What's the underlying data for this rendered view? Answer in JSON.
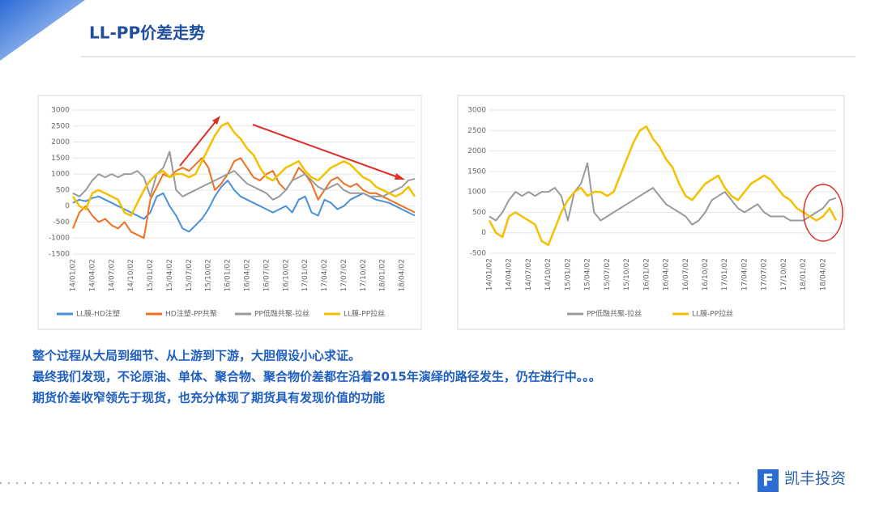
{
  "header": {
    "title": "LL-PP价差走势"
  },
  "body": {
    "lines": [
      "整个过程从大局到细节、从上游到下游，大胆假设小心求证。",
      "最终我们发现，不论原油、单体、聚合物、聚合物价差都在沿着2015年演绎的路径发生，仍在进行中。。。",
      "期货价差收窄领先于现货，也充分体现了期货具有发现价值的功能"
    ]
  },
  "logo": {
    "name": "凯丰投资"
  },
  "chart_data": [
    {
      "type": "line",
      "categories": [
        "14/01/02",
        null,
        null,
        "14/04/02",
        null,
        null,
        "14/07/02",
        null,
        null,
        "14/10/02",
        null,
        null,
        "15/01/02",
        null,
        null,
        "15/04/02",
        null,
        null,
        "15/07/02",
        null,
        null,
        "15/10/02",
        null,
        null,
        "16/01/02",
        null,
        null,
        "16/04/02",
        null,
        null,
        "16/07/02",
        null,
        null,
        "16/10/02",
        null,
        null,
        "17/01/02",
        null,
        null,
        "17/04/02",
        null,
        null,
        "17/07/02",
        null,
        null,
        "17/10/02",
        null,
        null,
        "18/01/02",
        null,
        null,
        "18/04/02",
        null,
        null
      ],
      "ylim": [
        -1500,
        3000
      ],
      "yticks": [
        -1500,
        -1000,
        -500,
        0,
        500,
        1000,
        1500,
        2000,
        2500,
        3000
      ],
      "grid": true,
      "series": [
        {
          "name": "LL膜-HD注塑",
          "color": "#4a90d9",
          "values": [
            100,
            200,
            150,
            250,
            300,
            200,
            100,
            0,
            -100,
            -200,
            -300,
            -400,
            -200,
            300,
            400,
            0,
            -300,
            -700,
            -800,
            -600,
            -400,
            -100,
            300,
            600,
            800,
            500,
            300,
            200,
            100,
            0,
            -100,
            -200,
            -100,
            0,
            -200,
            200,
            300,
            -200,
            -300,
            200,
            100,
            -100,
            0,
            200,
            300,
            400,
            300,
            200,
            150,
            100,
            0,
            -100,
            -200,
            -300
          ]
        },
        {
          "name": "HD注塑-PP共聚",
          "color": "#f07020",
          "values": [
            -700,
            -200,
            0,
            -300,
            -500,
            -400,
            -600,
            -700,
            -500,
            -800,
            -900,
            -1000,
            200,
            600,
            1000,
            900,
            1100,
            1200,
            1100,
            1300,
            1500,
            1200,
            500,
            700,
            1000,
            1400,
            1500,
            1200,
            900,
            800,
            1000,
            1100,
            700,
            500,
            800,
            1200,
            1000,
            700,
            200,
            500,
            800,
            900,
            700,
            600,
            700,
            500,
            400,
            400,
            300,
            200,
            100,
            0,
            -100,
            -200
          ]
        },
        {
          "name": "PP低融共聚-拉丝",
          "color": "#9a9a9a",
          "values": [
            400,
            300,
            500,
            800,
            1000,
            900,
            1000,
            900,
            1000,
            1000,
            1100,
            900,
            300,
            1000,
            1200,
            1700,
            500,
            300,
            400,
            500,
            600,
            700,
            800,
            900,
            1000,
            1100,
            900,
            700,
            600,
            500,
            400,
            200,
            300,
            500,
            800,
            900,
            1000,
            800,
            600,
            500,
            600,
            700,
            500,
            400,
            400,
            400,
            300,
            300,
            300,
            400,
            500,
            600,
            800,
            850
          ]
        },
        {
          "name": "LL膜-PP拉丝",
          "color": "#f5c000",
          "values": [
            300,
            0,
            -100,
            400,
            500,
            400,
            300,
            200,
            -200,
            -300,
            100,
            500,
            800,
            1000,
            1100,
            900,
            1000,
            1000,
            900,
            1000,
            1400,
            1800,
            2200,
            2500,
            2600,
            2300,
            2100,
            1800,
            1600,
            1200,
            900,
            800,
            1000,
            1200,
            1300,
            1400,
            1100,
            900,
            800,
            1000,
            1200,
            1300,
            1400,
            1300,
            1100,
            900,
            800,
            600,
            500,
            400,
            300,
            400,
            600,
            300
          ]
        }
      ]
    },
    {
      "type": "line",
      "categories": [
        "14/01/02",
        null,
        null,
        "14/04/02",
        null,
        null,
        "14/07/02",
        null,
        null,
        "14/10/02",
        null,
        null,
        "15/01/02",
        null,
        null,
        "15/04/02",
        null,
        null,
        "15/07/02",
        null,
        null,
        "15/10/02",
        null,
        null,
        "16/01/02",
        null,
        null,
        "16/04/02",
        null,
        null,
        "16/07/02",
        null,
        null,
        "16/10/02",
        null,
        null,
        "17/01/02",
        null,
        null,
        "17/04/02",
        null,
        null,
        "17/07/02",
        null,
        null,
        "17/10/02",
        null,
        null,
        "18/01/02",
        null,
        null,
        "18/04/02",
        null,
        null
      ],
      "ylim": [
        -500,
        3000
      ],
      "yticks": [
        -500,
        0,
        500,
        1000,
        1500,
        2000,
        2500,
        3000
      ],
      "grid": true,
      "series": [
        {
          "name": "PP低融共聚-拉丝",
          "color": "#9a9a9a",
          "values": [
            400,
            300,
            500,
            800,
            1000,
            900,
            1000,
            900,
            1000,
            1000,
            1100,
            900,
            300,
            1000,
            1200,
            1700,
            500,
            300,
            400,
            500,
            600,
            700,
            800,
            900,
            1000,
            1100,
            900,
            700,
            600,
            500,
            400,
            200,
            300,
            500,
            800,
            900,
            1000,
            800,
            600,
            500,
            600,
            700,
            500,
            400,
            400,
            400,
            300,
            300,
            300,
            400,
            500,
            600,
            800,
            850
          ]
        },
        {
          "name": "LL膜-PP拉丝",
          "color": "#f5c000",
          "values": [
            300,
            0,
            -100,
            400,
            500,
            400,
            300,
            200,
            -200,
            -300,
            100,
            500,
            800,
            1000,
            1100,
            900,
            1000,
            1000,
            900,
            1000,
            1400,
            1800,
            2200,
            2500,
            2600,
            2300,
            2100,
            1800,
            1600,
            1200,
            900,
            800,
            1000,
            1200,
            1300,
            1400,
            1100,
            900,
            800,
            1000,
            1200,
            1300,
            1400,
            1300,
            1100,
            900,
            800,
            600,
            500,
            400,
            300,
            400,
            600,
            300
          ]
        }
      ]
    }
  ]
}
